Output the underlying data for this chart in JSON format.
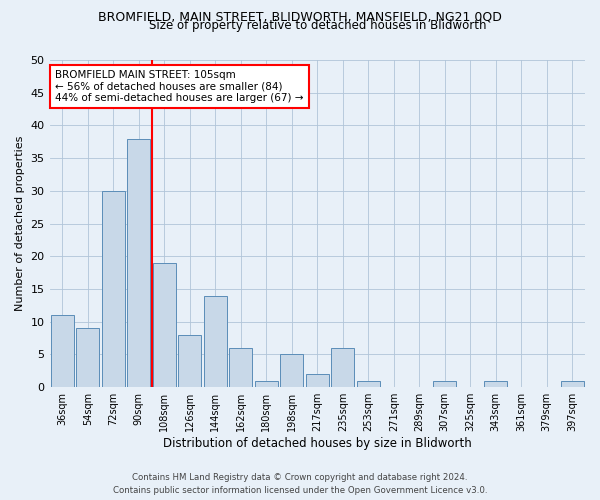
{
  "title": "BROMFIELD, MAIN STREET, BLIDWORTH, MANSFIELD, NG21 0QD",
  "subtitle": "Size of property relative to detached houses in Blidworth",
  "xlabel": "Distribution of detached houses by size in Blidworth",
  "ylabel": "Number of detached properties",
  "categories": [
    "36sqm",
    "54sqm",
    "72sqm",
    "90sqm",
    "108sqm",
    "126sqm",
    "144sqm",
    "162sqm",
    "180sqm",
    "198sqm",
    "217sqm",
    "235sqm",
    "253sqm",
    "271sqm",
    "289sqm",
    "307sqm",
    "325sqm",
    "343sqm",
    "361sqm",
    "379sqm",
    "397sqm"
  ],
  "values": [
    11,
    9,
    30,
    38,
    19,
    8,
    14,
    6,
    1,
    5,
    2,
    6,
    1,
    0,
    0,
    1,
    0,
    1,
    0,
    0,
    1
  ],
  "bar_color": "#c8d8e8",
  "bar_edge_color": "#5b8db8",
  "annotation_box_text": "BROMFIELD MAIN STREET: 105sqm\n← 56% of detached houses are smaller (84)\n44% of semi-detached houses are larger (67) →",
  "annotation_box_color": "white",
  "annotation_box_edge_color": "red",
  "vline_color": "red",
  "vline_x_index": 3.5,
  "ylim": [
    0,
    50
  ],
  "yticks": [
    0,
    5,
    10,
    15,
    20,
    25,
    30,
    35,
    40,
    45,
    50
  ],
  "grid_color": "#b0c4d8",
  "footer_line1": "Contains HM Land Registry data © Crown copyright and database right 2024.",
  "footer_line2": "Contains public sector information licensed under the Open Government Licence v3.0.",
  "bg_color": "#e8f0f8"
}
